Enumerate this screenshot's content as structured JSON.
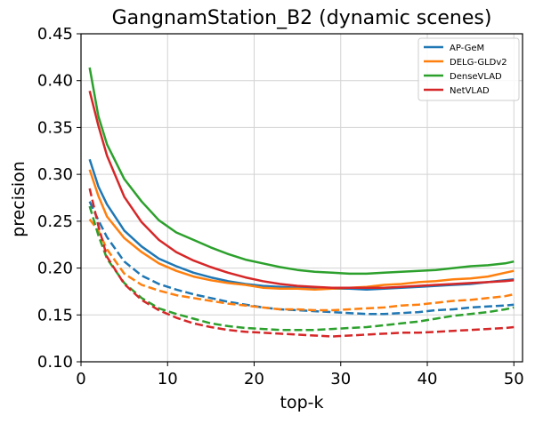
{
  "chart_data": {
    "type": "line",
    "title": "GangnamStation_B2 (dynamic scenes)",
    "xlabel": "top-k",
    "ylabel": "precision",
    "xlim": [
      0,
      51
    ],
    "ylim": [
      0.1,
      0.45
    ],
    "xticks": [
      0,
      10,
      20,
      30,
      40,
      50
    ],
    "xtick_labels": [
      "0",
      "10",
      "20",
      "30",
      "40",
      "50"
    ],
    "yticks": [
      0.1,
      0.15,
      0.2,
      0.25,
      0.3,
      0.35,
      0.4,
      0.45
    ],
    "ytick_labels": [
      "0.10",
      "0.15",
      "0.20",
      "0.25",
      "0.30",
      "0.35",
      "0.40",
      "0.45"
    ],
    "grid": true,
    "legend_position": "top-right",
    "x": [
      1,
      2,
      3,
      5,
      7,
      9,
      11,
      13,
      15,
      17,
      19,
      21,
      23,
      25,
      27,
      29,
      31,
      33,
      35,
      37,
      39,
      41,
      43,
      45,
      47,
      49,
      50
    ],
    "series": [
      {
        "name": "AP-GeM",
        "color": "#1f77b4",
        "style": "solid",
        "values": [
          0.316,
          0.287,
          0.268,
          0.24,
          0.223,
          0.21,
          0.202,
          0.195,
          0.19,
          0.186,
          0.183,
          0.181,
          0.18,
          0.179,
          0.178,
          0.178,
          0.178,
          0.177,
          0.178,
          0.179,
          0.18,
          0.181,
          0.182,
          0.183,
          0.185,
          0.187,
          0.188
        ]
      },
      {
        "name": "DELG-GLDv2",
        "color": "#ff7f0e",
        "style": "solid",
        "values": [
          0.305,
          0.277,
          0.255,
          0.232,
          0.217,
          0.205,
          0.197,
          0.191,
          0.187,
          0.184,
          0.182,
          0.179,
          0.178,
          0.178,
          0.177,
          0.178,
          0.179,
          0.18,
          0.182,
          0.183,
          0.185,
          0.186,
          0.188,
          0.189,
          0.191,
          0.195,
          0.197
        ]
      },
      {
        "name": "DenseVLAD",
        "color": "#2ca02c",
        "style": "solid",
        "values": [
          0.414,
          0.362,
          0.332,
          0.295,
          0.271,
          0.251,
          0.238,
          0.23,
          0.222,
          0.215,
          0.209,
          0.205,
          0.201,
          0.198,
          0.196,
          0.195,
          0.194,
          0.194,
          0.195,
          0.196,
          0.197,
          0.198,
          0.2,
          0.202,
          0.203,
          0.205,
          0.207
        ]
      },
      {
        "name": "NetVLAD",
        "color": "#d62728",
        "style": "solid",
        "values": [
          0.389,
          0.352,
          0.32,
          0.276,
          0.249,
          0.23,
          0.217,
          0.208,
          0.201,
          0.195,
          0.19,
          0.186,
          0.183,
          0.181,
          0.18,
          0.179,
          0.179,
          0.179,
          0.179,
          0.18,
          0.181,
          0.182,
          0.183,
          0.184,
          0.185,
          0.186,
          0.187
        ]
      },
      {
        "name": "AP-GeM (dashed)",
        "color": "#1f77b4",
        "style": "dashed",
        "values": [
          0.271,
          0.251,
          0.233,
          0.207,
          0.192,
          0.183,
          0.177,
          0.172,
          0.168,
          0.164,
          0.161,
          0.158,
          0.156,
          0.155,
          0.154,
          0.153,
          0.152,
          0.151,
          0.151,
          0.152,
          0.153,
          0.155,
          0.156,
          0.158,
          0.159,
          0.16,
          0.161
        ]
      },
      {
        "name": "DELG-GLDv2 (dashed)",
        "color": "#ff7f0e",
        "style": "dashed",
        "values": [
          0.252,
          0.24,
          0.22,
          0.194,
          0.182,
          0.176,
          0.171,
          0.168,
          0.165,
          0.162,
          0.16,
          0.158,
          0.156,
          0.156,
          0.155,
          0.155,
          0.156,
          0.157,
          0.158,
          0.16,
          0.161,
          0.163,
          0.165,
          0.166,
          0.168,
          0.17,
          0.172
        ]
      },
      {
        "name": "DenseVLAD (dashed)",
        "color": "#2ca02c",
        "style": "dashed",
        "values": [
          0.266,
          0.235,
          0.21,
          0.184,
          0.168,
          0.157,
          0.151,
          0.146,
          0.141,
          0.138,
          0.136,
          0.135,
          0.134,
          0.134,
          0.134,
          0.135,
          0.136,
          0.137,
          0.139,
          0.141,
          0.143,
          0.146,
          0.149,
          0.151,
          0.153,
          0.156,
          0.158
        ]
      },
      {
        "name": "NetVLAD (dashed)",
        "color": "#d62728",
        "style": "dashed",
        "values": [
          0.285,
          0.245,
          0.212,
          0.183,
          0.166,
          0.155,
          0.147,
          0.141,
          0.137,
          0.134,
          0.132,
          0.131,
          0.13,
          0.129,
          0.128,
          0.127,
          0.128,
          0.129,
          0.13,
          0.131,
          0.131,
          0.132,
          0.133,
          0.134,
          0.135,
          0.136,
          0.137
        ]
      }
    ],
    "legend": [
      "AP-GeM",
      "DELG-GLDv2",
      "DenseVLAD",
      "NetVLAD"
    ]
  }
}
